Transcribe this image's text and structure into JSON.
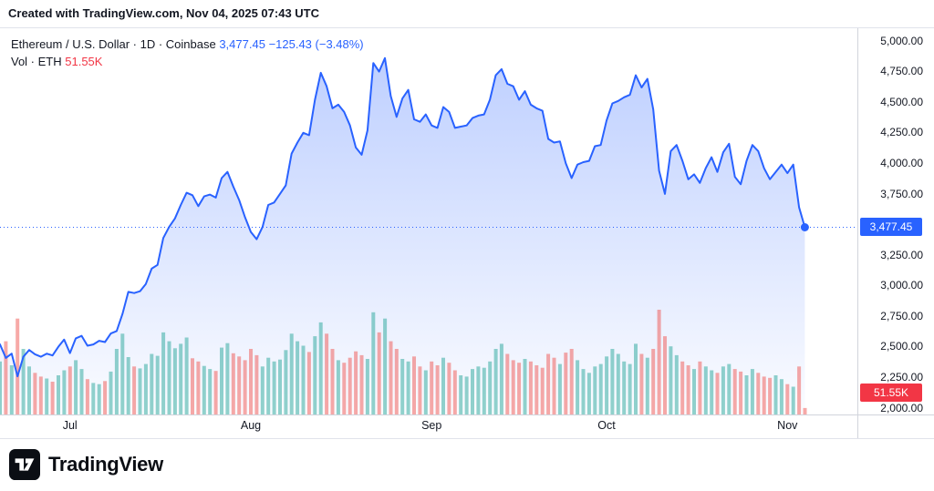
{
  "attribution": {
    "text": "Created with TradingView.com, Nov 04, 2025 07:43 UTC"
  },
  "legend": {
    "symbol_title": "Ethereum / U.S. Dollar · 1D · Coinbase",
    "last_price": "3,477.45",
    "change": "−125.43 (−3.48%)",
    "volume_label": "Vol · ETH",
    "volume_value": "51.55K"
  },
  "price_axis": {
    "labels": [
      "5,000.00",
      "4,750.00",
      "4,500.00",
      "4,250.00",
      "4,000.00",
      "3,750.00",
      "3,250.00",
      "3,000.00",
      "2,750.00",
      "2,500.00",
      "2,250.00",
      "2,000.00"
    ],
    "current_price_badge": "3,477.45",
    "volume_badge": "51.55K"
  },
  "footer": {
    "brand": "TradingView"
  },
  "colors": {
    "line": "#2962FF",
    "area_top": "rgba(41,98,255,0.30)",
    "area_bottom": "rgba(41,98,255,0.02)",
    "vol_up": "#26A69A",
    "vol_down": "#EF5350",
    "badge_price": "#2962FF",
    "badge_volume": "#F23645",
    "text": "#131722",
    "axis_border": "#D1D4DC"
  },
  "chart_data": {
    "type": "area",
    "title": "Ethereum / U.S. Dollar, 1D, Coinbase",
    "x_start": "2025-06-19",
    "x_interval": "1 day",
    "x_end": "2025-11-04",
    "ylim_price": [
      2000,
      5000
    ],
    "last_price": 3477.45,
    "last_change": -125.43,
    "last_change_pct": -3.48,
    "last_volume_k": 51.55,
    "right_pad_points": 9,
    "month_ticks": [
      {
        "label": "Jul",
        "index": 12
      },
      {
        "label": "Aug",
        "index": 43
      },
      {
        "label": "Sep",
        "index": 74
      },
      {
        "label": "Oct",
        "index": 104
      },
      {
        "label": "Nov",
        "index": 135
      }
    ],
    "series": [
      {
        "name": "ETH/USD close",
        "values": [
          2520,
          2410,
          2445,
          2260,
          2420,
          2475,
          2440,
          2420,
          2445,
          2430,
          2500,
          2560,
          2450,
          2570,
          2590,
          2510,
          2520,
          2550,
          2540,
          2610,
          2630,
          2770,
          2950,
          2940,
          2955,
          3015,
          3140,
          3170,
          3390,
          3480,
          3550,
          3660,
          3760,
          3740,
          3650,
          3730,
          3745,
          3720,
          3880,
          3930,
          3810,
          3700,
          3560,
          3440,
          3380,
          3480,
          3660,
          3680,
          3750,
          3820,
          4080,
          4170,
          4250,
          4230,
          4520,
          4740,
          4630,
          4450,
          4480,
          4420,
          4310,
          4130,
          4070,
          4270,
          4820,
          4750,
          4860,
          4550,
          4380,
          4530,
          4600,
          4360,
          4340,
          4400,
          4310,
          4290,
          4460,
          4420,
          4290,
          4300,
          4310,
          4370,
          4390,
          4400,
          4520,
          4720,
          4770,
          4650,
          4630,
          4520,
          4590,
          4480,
          4450,
          4430,
          4200,
          4170,
          4180,
          4000,
          3880,
          3990,
          4010,
          4020,
          4140,
          4150,
          4350,
          4490,
          4510,
          4540,
          4560,
          4720,
          4620,
          4690,
          4440,
          3940,
          3750,
          4100,
          4150,
          4020,
          3870,
          3910,
          3840,
          3960,
          4050,
          3930,
          4090,
          4160,
          3890,
          3830,
          4020,
          4150,
          4100,
          3960,
          3870,
          3930,
          3990,
          3920,
          3990,
          3640,
          3477.45
        ]
      },
      {
        "name": "Volume (thousand ETH)",
        "values": [
          420,
          580,
          390,
          760,
          520,
          380,
          330,
          300,
          285,
          260,
          310,
          350,
          380,
          430,
          360,
          280,
          250,
          240,
          265,
          340,
          520,
          640,
          455,
          380,
          365,
          400,
          480,
          465,
          650,
          580,
          525,
          560,
          610,
          445,
          420,
          385,
          360,
          345,
          530,
          565,
          485,
          460,
          430,
          520,
          470,
          380,
          450,
          420,
          435,
          510,
          640,
          580,
          545,
          495,
          620,
          730,
          640,
          520,
          430,
          410,
          450,
          500,
          470,
          440,
          810,
          650,
          760,
          580,
          520,
          440,
          420,
          460,
          380,
          350,
          420,
          390,
          450,
          410,
          350,
          310,
          300,
          360,
          380,
          370,
          420,
          520,
          560,
          480,
          430,
          410,
          440,
          420,
          390,
          370,
          480,
          450,
          400,
          490,
          520,
          430,
          360,
          330,
          380,
          400,
          460,
          520,
          480,
          420,
          400,
          560,
          480,
          450,
          520,
          830,
          620,
          540,
          470,
          420,
          390,
          360,
          420,
          380,
          350,
          330,
          380,
          400,
          360,
          340,
          310,
          360,
          330,
          300,
          290,
          310,
          280,
          240,
          220,
          380,
          51.55
        ]
      }
    ]
  }
}
